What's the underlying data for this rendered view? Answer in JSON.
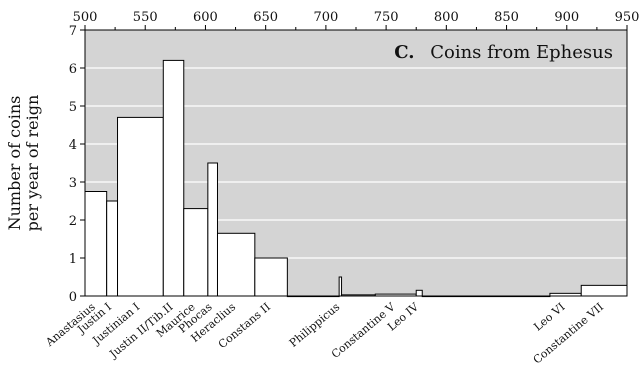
{
  "chart_data": {
    "type": "bar",
    "title": "Coins from Ephesus",
    "panel_letter": "C.",
    "ylabel": [
      "Number of coins",
      "per year of reign"
    ],
    "xlabel": "",
    "xlim": [
      500,
      950
    ],
    "ylim": [
      0,
      7
    ],
    "x_ticks": [
      500,
      550,
      600,
      650,
      700,
      750,
      800,
      850,
      900,
      950
    ],
    "y_ticks": [
      0,
      1,
      2,
      3,
      4,
      5,
      6,
      7
    ],
    "grid": "horizontal",
    "colors": {
      "panel": "#d4d4d4",
      "bar_fill": "#ffffff",
      "bar_stroke": "#000000",
      "grid": "#ffffff"
    },
    "bars": [
      {
        "label": "Anastasius",
        "start": 491,
        "end": 518,
        "value": 2.75
      },
      {
        "label": "Justin I",
        "start": 518,
        "end": 527,
        "value": 2.5
      },
      {
        "label": "Justinian I",
        "start": 527,
        "end": 565,
        "value": 4.7
      },
      {
        "label": "Justin II/Tib.II",
        "start": 565,
        "end": 582,
        "value": 6.2
      },
      {
        "label": "Maurice",
        "start": 582,
        "end": 602,
        "value": 2.3
      },
      {
        "label": "Phocas",
        "start": 602,
        "end": 610,
        "value": 3.5
      },
      {
        "label": "Heraclius",
        "start": 610,
        "end": 641,
        "value": 1.65
      },
      {
        "label": "Constans II",
        "start": 641,
        "end": 668,
        "value": 1.0
      },
      {
        "label": "",
        "start": 668,
        "end": 711,
        "value": 0.0
      },
      {
        "label": "Philippicus",
        "start": 711,
        "end": 713,
        "value": 0.5
      },
      {
        "label": "",
        "start": 713,
        "end": 741,
        "value": 0.03
      },
      {
        "label": "Constantine V",
        "start": 741,
        "end": 775,
        "value": 0.05
      },
      {
        "label": "Leo IV",
        "start": 775,
        "end": 780,
        "value": 0.15
      },
      {
        "label": "",
        "start": 780,
        "end": 886,
        "value": 0.0
      },
      {
        "label": "Leo VI",
        "start": 886,
        "end": 912,
        "value": 0.07
      },
      {
        "label": "Constantine VII",
        "start": 912,
        "end": 959,
        "value": 0.28
      }
    ]
  }
}
